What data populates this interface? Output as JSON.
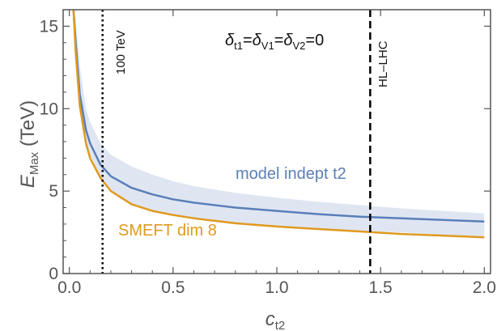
{
  "chart_data": {
    "type": "line",
    "xlabel": {
      "main": "c",
      "sub": "t2"
    },
    "ylabel": {
      "main": "E",
      "sub": "Max",
      "unit": " (TeV)"
    },
    "xlim": [
      -0.03,
      2.03
    ],
    "ylim": [
      0,
      16
    ],
    "xticks": [
      "0.0",
      "0.5",
      "1.0",
      "1.5",
      "2.0"
    ],
    "yticks": [
      "0",
      "5",
      "10",
      "15"
    ],
    "grid": false,
    "series": [
      {
        "name": "model indept t2",
        "color": "#5a7fb8",
        "x": [
          0.02,
          0.03,
          0.05,
          0.08,
          0.1,
          0.15,
          0.2,
          0.3,
          0.4,
          0.5,
          0.6,
          0.8,
          1.0,
          1.2,
          1.4,
          1.6,
          1.8,
          2.0
        ],
        "y": [
          16.0,
          14.1,
          10.9,
          8.7,
          7.9,
          6.6,
          5.9,
          5.2,
          4.8,
          4.5,
          4.3,
          4.0,
          3.8,
          3.6,
          3.45,
          3.35,
          3.25,
          3.15
        ],
        "band_upper": [
          16.0,
          15.5,
          12.6,
          10.0,
          9.2,
          7.9,
          7.2,
          6.5,
          6.0,
          5.6,
          5.3,
          4.9,
          4.6,
          4.35,
          4.15,
          3.95,
          3.8,
          3.65
        ],
        "band_lower": [
          16.0,
          13.6,
          10.2,
          8.0,
          7.2,
          5.8,
          5.0,
          4.2,
          3.8,
          3.5,
          3.3,
          3.1,
          2.9,
          2.75,
          2.6,
          2.5,
          2.35,
          2.25
        ]
      },
      {
        "name": "SMEFT dim 8",
        "color": "#e09a1e",
        "x": [
          0.02,
          0.03,
          0.05,
          0.08,
          0.1,
          0.15,
          0.2,
          0.3,
          0.4,
          0.5,
          0.6,
          0.8,
          1.0,
          1.2,
          1.4,
          1.6,
          1.8,
          2.0
        ],
        "y": [
          16.0,
          13.5,
          10.2,
          7.9,
          7.0,
          5.8,
          5.0,
          4.2,
          3.8,
          3.55,
          3.35,
          3.05,
          2.85,
          2.7,
          2.55,
          2.4,
          2.3,
          2.2
        ]
      }
    ],
    "vlines": [
      {
        "x": 0.16,
        "label": "100 TeV",
        "style": "dotted"
      },
      {
        "x": 1.45,
        "label": "HL–LHC",
        "style": "dashed"
      }
    ],
    "annotation": {
      "delta": "δ",
      "t1": "t1",
      "v1": "V1",
      "v2": "V2",
      "eq": "=",
      "zero": "=0"
    }
  }
}
